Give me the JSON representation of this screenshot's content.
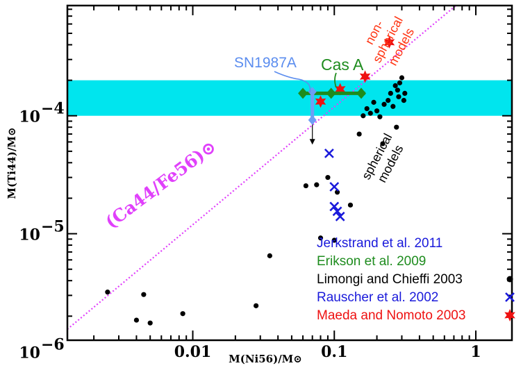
{
  "chart_data": {
    "type": "scatter",
    "x_scale": "log",
    "y_scale": "log",
    "xlim": [
      0.0013,
      1.8
    ],
    "ylim": [
      1.25e-06,
      0.00086
    ],
    "xlabel": "M(Ni56)/M⊙",
    "ylabel": "M(Ti44)/M⊙",
    "x_ticks": [
      {
        "value": 0.01,
        "label": "0.01"
      },
      {
        "value": 0.1,
        "label": "0.1"
      },
      {
        "value": 1,
        "label": "1"
      }
    ],
    "y_ticks": [
      {
        "value": 1e-06,
        "label_base": "10",
        "label_exp": "−6"
      },
      {
        "value": 1e-05,
        "label_base": "10",
        "label_exp": "−5"
      },
      {
        "value": 0.0001,
        "label_base": "10",
        "label_exp": "−4"
      }
    ],
    "band": {
      "y_min": 0.0001,
      "y_max": 0.0002,
      "color": "#00e5ee"
    },
    "solar_ratio_line": {
      "label": "(Ca44/Fe56)⊙",
      "color": "#e040fb",
      "points": [
        [
          0.0013,
          1.55e-06
        ],
        [
          1.8,
          0.00214
        ]
      ]
    },
    "series": [
      {
        "name": "Limongi and Chieffi 2003",
        "color": "#000000",
        "marker": "circle",
        "points": [
          [
            0.0025,
            3.2e-06
          ],
          [
            0.004,
            1.85e-06
          ],
          [
            0.0045,
            3.05e-06
          ],
          [
            0.005,
            1.75e-06
          ],
          [
            0.0085,
            2.1e-06
          ],
          [
            0.028,
            2.45e-06
          ],
          [
            0.035,
            6.5e-06
          ],
          [
            0.063,
            2.55e-05
          ],
          [
            0.075,
            2.6e-05
          ],
          [
            0.08,
            9.2e-06
          ],
          [
            0.09,
            3e-05
          ],
          [
            0.1,
            8.8e-06
          ],
          [
            0.105,
            2.25e-05
          ],
          [
            0.13,
            1.75e-05
          ],
          [
            0.15,
            7e-05
          ],
          [
            0.16,
            0.0001
          ],
          [
            0.17,
            0.000115
          ],
          [
            0.18,
            0.000105
          ],
          [
            0.19,
            0.00013
          ],
          [
            0.2,
            0.00011
          ],
          [
            0.21,
            9.8e-05
          ],
          [
            0.22,
            5.8e-05
          ],
          [
            0.225,
            0.000125
          ],
          [
            0.24,
            0.000135
          ],
          [
            0.25,
            0.000155
          ],
          [
            0.26,
            0.00012
          ],
          [
            0.27,
            0.00018
          ],
          [
            0.275,
            8e-05
          ],
          [
            0.28,
            0.000165
          ],
          [
            0.285,
            0.000145
          ],
          [
            0.29,
            0.00019
          ],
          [
            0.3,
            0.00021
          ],
          [
            0.31,
            0.000135
          ],
          [
            0.315,
            0.000155
          ]
        ]
      },
      {
        "name": "Rauscher et al. 2002",
        "color": "#1a1adb",
        "marker": "x",
        "points": [
          [
            0.092,
            4.8e-05
          ],
          [
            0.1,
            2.5e-05
          ],
          [
            0.1,
            1.7e-05
          ],
          [
            0.105,
            1.55e-05
          ],
          [
            0.11,
            1.4e-05
          ]
        ]
      },
      {
        "name": "Maeda and Nomoto 2003",
        "color": "#ee1111",
        "marker": "star",
        "points": [
          [
            0.08,
            0.000132
          ],
          [
            0.11,
            0.000168
          ],
          [
            0.165,
            0.000215
          ],
          [
            0.245,
            0.00042
          ]
        ]
      }
    ],
    "measurements": [
      {
        "label": "Cas A",
        "reference": "Erikson et al. 2009",
        "color": "#1e8c1e",
        "points": [
          [
            0.06,
            0.000155
          ],
          [
            0.095,
            0.000155
          ],
          [
            0.155,
            0.000155
          ]
        ],
        "x_range": [
          0.06,
          0.165
        ],
        "y": 0.000155
      },
      {
        "label": "SN1987A",
        "reference": "Jerkstrand et al. 2011",
        "color": "#6e9ef5",
        "x": 0.07,
        "y_top": 0.00016,
        "y_bottom": 9.2e-05,
        "upper_limit_to": 5.7e-05
      }
    ],
    "annotations": [
      {
        "text": "SN1987A",
        "color": "#5b8def"
      },
      {
        "text": "Cas A",
        "color": "#1e8c1e"
      },
      {
        "lines": [
          "non-",
          "spherical",
          "models"
        ],
        "color": "#ff3311"
      },
      {
        "lines": [
          "spherical",
          "models"
        ],
        "color": "#000000"
      }
    ],
    "legend": {
      "placement": "bottom-right",
      "entries": [
        {
          "text": "Jerkstrand et al. 2011",
          "color": "#1a1adb",
          "marker": "none"
        },
        {
          "text": "Erikson et al. 2009",
          "color": "#1e8c1e",
          "marker": "none"
        },
        {
          "text": "Limongi and Chieffi 2003",
          "color": "#000000",
          "marker": "circle"
        },
        {
          "text": "Rauscher et al. 2002",
          "color": "#1a1adb",
          "marker": "x"
        },
        {
          "text": "Maeda and Nomoto 2003",
          "color": "#ee1111",
          "marker": "star"
        }
      ]
    }
  }
}
